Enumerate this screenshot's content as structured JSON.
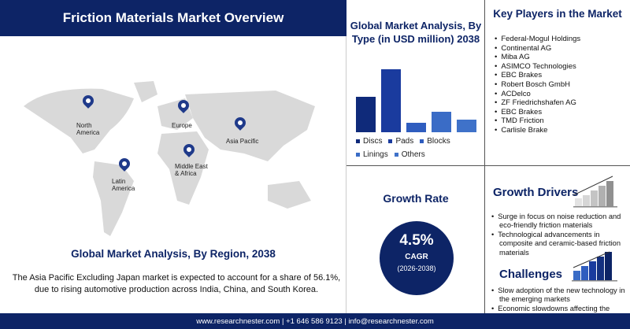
{
  "header": {
    "title": "Friction Materials Market Overview"
  },
  "map": {
    "regions": [
      "North America",
      "Europe",
      "Asia Pacific",
      "Middle East & Africa",
      "Latin America"
    ],
    "pin_color": "#1f3a8a",
    "land_color": "#d9d9d9"
  },
  "region_section": {
    "title": "Global Market Analysis, By Region, 2038",
    "text": "The Asia Pacific Excluding Japan market is expected to account for a share of 56.1%, due to rising automotive production across India, China, and South Korea."
  },
  "chart_data": {
    "type": "bar",
    "title": "Global Market Analysis, By Type (in USD million) 2038",
    "categories": [
      "Discs",
      "Pads",
      "Blocks",
      "Linings",
      "Others"
    ],
    "values": [
      45,
      80,
      12,
      26,
      16
    ],
    "colors": [
      "#0f2a7a",
      "#1a3b9e",
      "#2f5dbf",
      "#3a6cc6",
      "#3f72c9"
    ],
    "legend_placement": "bottom",
    "grid": false,
    "axes_shown": false
  },
  "growth": {
    "title": "Growth Rate",
    "value": "4.5%",
    "label": "CAGR",
    "period": "(2026-2038)"
  },
  "key_players": {
    "title": "Key Players in the Market",
    "items": [
      "Federal-Mogul Holdings",
      "Continental AG",
      "Miba AG",
      "ASIMCO Technologies",
      "EBC Brakes",
      "Robert Bosch GmbH",
      "ACDelco",
      "ZF Friedrichshafen AG",
      "EBC Brakes",
      "TMD Friction",
      "Carlisle Brake"
    ]
  },
  "drivers": {
    "title": "Growth Drivers",
    "items": [
      "Surge in focus on noise reduction and eco-friendly friction materials",
      "Technological advancements in composite and ceramic-based friction materials"
    ]
  },
  "challenges": {
    "title": "Challenges",
    "items": [
      "Slow adoption of the new technology in the emerging markets",
      "Economic slowdowns affecting the industrial and automotive sectors"
    ]
  },
  "footer": {
    "text": "www.researchnester.com | +1 646 586 9123 | info@researchnester.com"
  },
  "colors": {
    "navy": "#0d2466"
  }
}
